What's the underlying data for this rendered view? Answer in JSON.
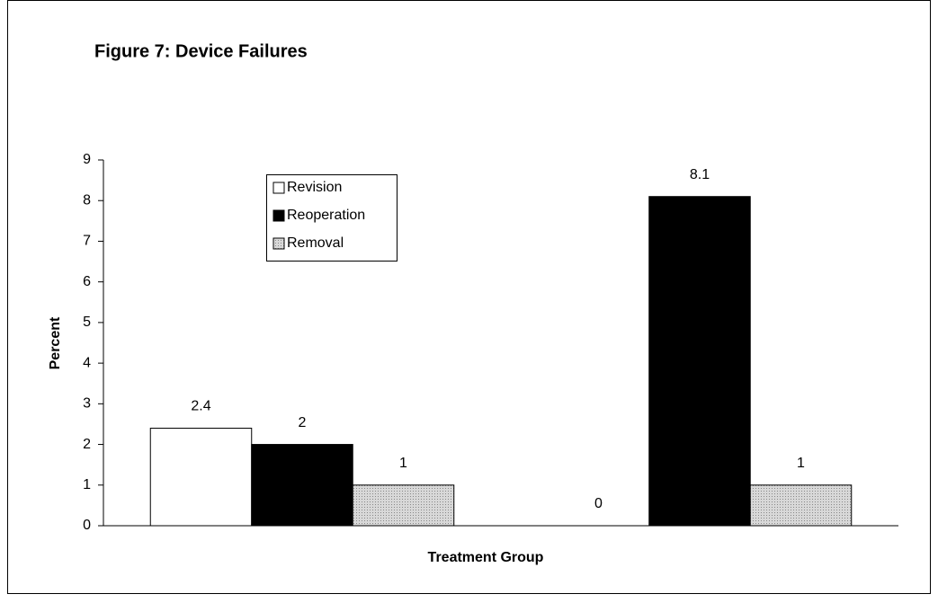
{
  "chart_data": {
    "type": "bar",
    "title": "Figure 7:  Device Failures",
    "x_label": "Treatment Group",
    "y_label": "Percent",
    "categories": [
      null,
      null
    ],
    "series": [
      {
        "name": "Revision",
        "color": "#ffffff",
        "values": [
          2.4,
          0
        ]
      },
      {
        "name": "Reoperation",
        "color": "#000000",
        "values": [
          2,
          8.1
        ]
      },
      {
        "name": "Removal",
        "color": "#c8c8c8",
        "values": [
          1,
          1
        ]
      }
    ],
    "ylim": [
      0,
      9
    ],
    "yticks": [
      0,
      1,
      2,
      3,
      4,
      5,
      6,
      7,
      8,
      9
    ],
    "grid": false,
    "legend": "upper left"
  }
}
